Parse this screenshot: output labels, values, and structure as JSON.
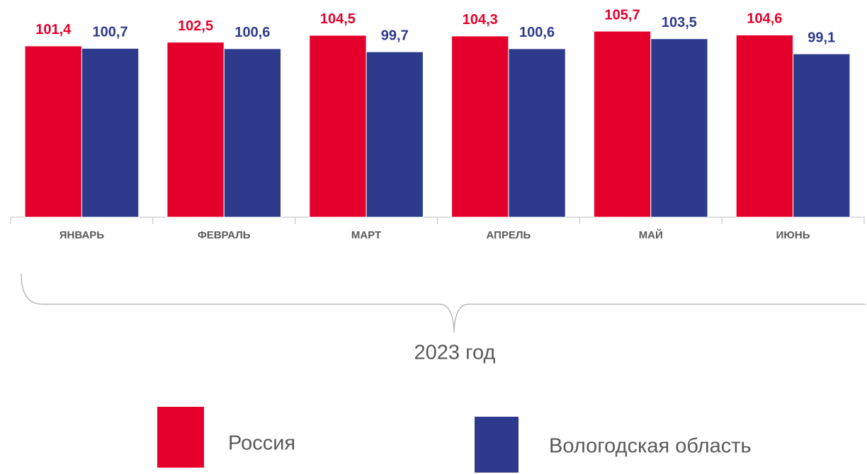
{
  "chart_data": {
    "type": "bar",
    "categories": [
      "ЯНВАРЬ",
      "ФЕВРАЛЬ",
      "МАРТ",
      "АПРЕЛЬ",
      "МАЙ",
      "ИЮНЬ"
    ],
    "series": [
      {
        "name": "Россия",
        "color": "#e4002b",
        "values": [
          101.4,
          102.5,
          104.5,
          104.3,
          105.7,
          104.6
        ],
        "value_labels": [
          "101,4",
          "102,5",
          "104,5",
          "104,3",
          "105,7",
          "104,6"
        ]
      },
      {
        "name": "Вологодская область",
        "color": "#2e3a8c",
        "values": [
          100.7,
          100.6,
          99.7,
          100.6,
          103.5,
          99.1
        ],
        "value_labels": [
          "100,7",
          "100,6",
          "99,7",
          "100,6",
          "103,5",
          "99,1"
        ]
      }
    ],
    "ylim": [
      51.5,
      108.6
    ],
    "annotation": "2023 год"
  }
}
